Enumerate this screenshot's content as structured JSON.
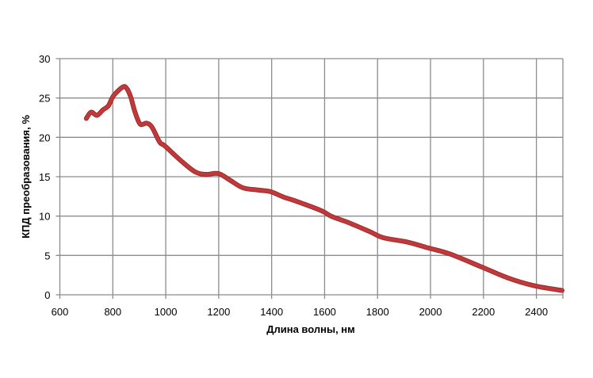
{
  "chart_data": {
    "type": "line",
    "title": "",
    "xlabel": "Длина волны, нм",
    "ylabel": "КПД преобразования, %",
    "xlim": [
      600,
      2500
    ],
    "ylim": [
      0,
      30
    ],
    "xticks": [
      600,
      800,
      1000,
      1200,
      1400,
      1600,
      1800,
      2000,
      2200,
      2400
    ],
    "yticks": [
      0,
      5,
      10,
      15,
      20,
      25,
      30
    ],
    "grid": true,
    "legend": "none",
    "series": [
      {
        "color": "#c0393b",
        "x": [
          700,
          718,
          740,
          763,
          783,
          803,
          838,
          853,
          868,
          883,
          903,
          928,
          948,
          977,
          997,
          1062,
          1112,
          1151,
          1199,
          1241,
          1291,
          1351,
          1396,
          1446,
          1492,
          1587,
          1627,
          1692,
          1772,
          1822,
          1912,
          1992,
          2072,
          2192,
          2292,
          2392,
          2497
        ],
        "y": [
          22.4,
          23.2,
          22.8,
          23.5,
          24.0,
          25.3,
          26.4,
          26.2,
          25.1,
          23.3,
          21.7,
          21.8,
          21.3,
          19.4,
          18.9,
          16.9,
          15.6,
          15.3,
          15.4,
          14.6,
          13.6,
          13.3,
          13.1,
          12.4,
          11.9,
          10.7,
          9.95,
          9.15,
          8.0,
          7.25,
          6.7,
          5.95,
          5.2,
          3.55,
          2.15,
          1.15,
          0.55
        ]
      }
    ]
  }
}
